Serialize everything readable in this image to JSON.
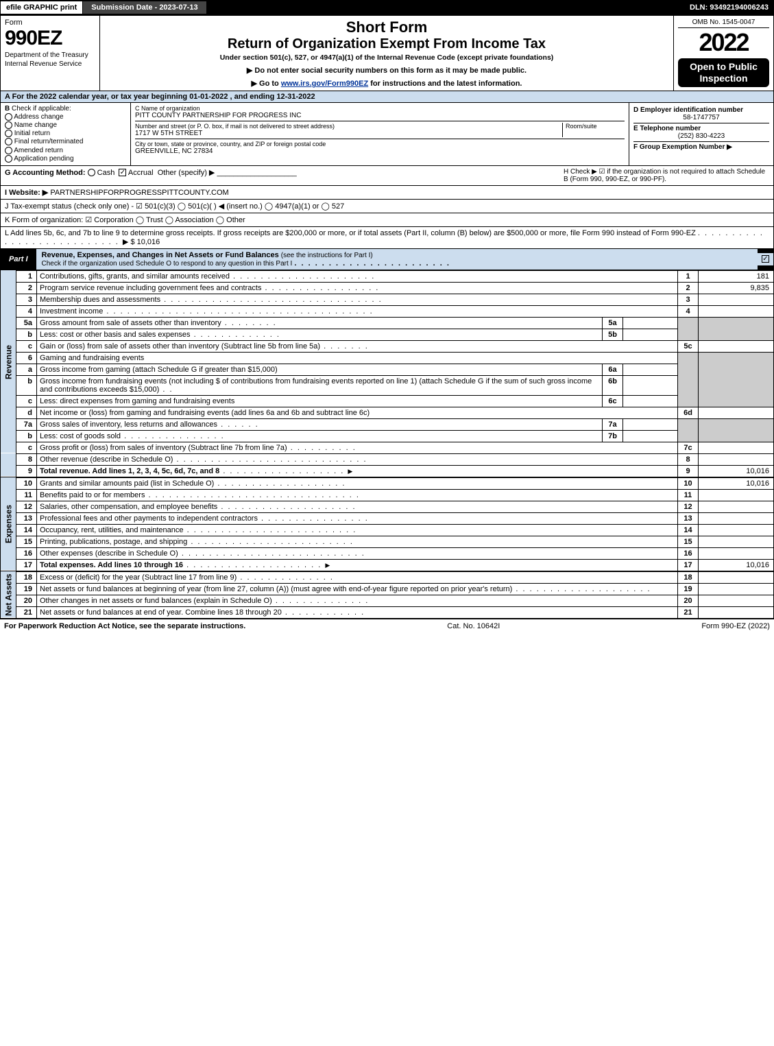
{
  "colors": {
    "header_blue": "#cde",
    "black": "#000000",
    "grey_cell": "#cccccc",
    "link": "#003399"
  },
  "top_bar": {
    "efile": "efile GRAPHIC print",
    "submission": "Submission Date - 2023-07-13",
    "dln": "DLN: 93492194006243"
  },
  "header": {
    "form_word": "Form",
    "form_number": "990EZ",
    "dept": "Department of the Treasury",
    "irs": "Internal Revenue Service",
    "short_form": "Short Form",
    "return_title": "Return of Organization Exempt From Income Tax",
    "under": "Under section 501(c), 527, or 4947(a)(1) of the Internal Revenue Code (except private foundations)",
    "hint1_prefix": "▶ Do not enter social security numbers on this form as it may be made public.",
    "hint2_prefix": "▶ Go to ",
    "hint2_link": "www.irs.gov/Form990EZ",
    "hint2_suffix": " for instructions and the latest information.",
    "omb": "OMB No. 1545-0047",
    "year": "2022",
    "open": "Open to Public Inspection"
  },
  "row_a": "A  For the 2022 calendar year, or tax year beginning 01-01-2022 , and ending 12-31-2022",
  "col_b": {
    "label": "B",
    "check_if": "Check if applicable:",
    "items": [
      "Address change",
      "Name change",
      "Initial return",
      "Final return/terminated",
      "Amended return",
      "Application pending"
    ]
  },
  "col_c": {
    "c_label": "C Name of organization",
    "org_name": "PITT COUNTY PARTNERSHIP FOR PROGRESS INC",
    "street_label": "Number and street (or P. O. box, if mail is not delivered to street address)",
    "room_label": "Room/suite",
    "street": "1717 W 5TH STREET",
    "city_label": "City or town, state or province, country, and ZIP or foreign postal code",
    "city": "GREENVILLE, NC  27834"
  },
  "col_d": {
    "d_label": "D Employer identification number",
    "ein": "58-1747757",
    "e_label": "E Telephone number",
    "phone": "(252) 830-4223",
    "f_label": "F Group Exemption Number ▶"
  },
  "row_g": {
    "g_label": "G Accounting Method:",
    "cash": "Cash",
    "accrual": "Accrual",
    "other": "Other (specify) ▶",
    "h_text": "H  Check ▶ ☑ if the organization is not required to attach Schedule B (Form 990, 990-EZ, or 990-PF)."
  },
  "row_i": {
    "label": "I Website: ▶",
    "value": "PARTNERSHIPFORPROGRESSPITTCOUNTY.COM"
  },
  "row_j": "J Tax-exempt status (check only one) - ☑ 501(c)(3)  ◯ 501(c)(  ) ◀ (insert no.)  ◯ 4947(a)(1) or  ◯ 527",
  "row_k": "K Form of organization:  ☑ Corporation   ◯ Trust   ◯ Association   ◯ Other",
  "row_l": {
    "text": "L Add lines 5b, 6c, and 7b to line 9 to determine gross receipts. If gross receipts are $200,000 or more, or if total assets (Part II, column (B) below) are $500,000 or more, file Form 990 instead of Form 990-EZ",
    "amount": "▶ $ 10,016"
  },
  "part1": {
    "tab": "Part I",
    "title": "Revenue, Expenses, and Changes in Net Assets or Fund Balances",
    "title_paren": "(see the instructions for Part I)",
    "subtitle": "Check if the organization used Schedule O to respond to any question in this Part I"
  },
  "vlabels": {
    "revenue": "Revenue",
    "expenses": "Expenses",
    "netassets": "Net Assets"
  },
  "lines": {
    "l1": {
      "n": "1",
      "t": "Contributions, gifts, grants, and similar amounts received",
      "box": "1",
      "val": "181"
    },
    "l2": {
      "n": "2",
      "t": "Program service revenue including government fees and contracts",
      "box": "2",
      "val": "9,835"
    },
    "l3": {
      "n": "3",
      "t": "Membership dues and assessments",
      "box": "3",
      "val": ""
    },
    "l4": {
      "n": "4",
      "t": "Investment income",
      "box": "4",
      "val": ""
    },
    "l5a": {
      "n": "5a",
      "t": "Gross amount from sale of assets other than inventory",
      "sub": "5a"
    },
    "l5b": {
      "n": "b",
      "t": "Less: cost or other basis and sales expenses",
      "sub": "5b"
    },
    "l5c": {
      "n": "c",
      "t": "Gain or (loss) from sale of assets other than inventory (Subtract line 5b from line 5a)",
      "box": "5c",
      "val": ""
    },
    "l6": {
      "n": "6",
      "t": "Gaming and fundraising events"
    },
    "l6a": {
      "n": "a",
      "t": "Gross income from gaming (attach Schedule G if greater than $15,000)",
      "sub": "6a"
    },
    "l6b": {
      "n": "b",
      "t": "Gross income from fundraising events (not including $                 of contributions from fundraising events reported on line 1) (attach Schedule G if the sum of such gross income and contributions exceeds $15,000)",
      "sub": "6b"
    },
    "l6c": {
      "n": "c",
      "t": "Less: direct expenses from gaming and fundraising events",
      "sub": "6c"
    },
    "l6d": {
      "n": "d",
      "t": "Net income or (loss) from gaming and fundraising events (add lines 6a and 6b and subtract line 6c)",
      "box": "6d",
      "val": ""
    },
    "l7a": {
      "n": "7a",
      "t": "Gross sales of inventory, less returns and allowances",
      "sub": "7a"
    },
    "l7b": {
      "n": "b",
      "t": "Less: cost of goods sold",
      "sub": "7b"
    },
    "l7c": {
      "n": "c",
      "t": "Gross profit or (loss) from sales of inventory (Subtract line 7b from line 7a)",
      "box": "7c",
      "val": ""
    },
    "l8": {
      "n": "8",
      "t": "Other revenue (describe in Schedule O)",
      "box": "8",
      "val": ""
    },
    "l9": {
      "n": "9",
      "t": "Total revenue. Add lines 1, 2, 3, 4, 5c, 6d, 7c, and 8",
      "box": "9",
      "val": "10,016",
      "bold": true
    },
    "l10": {
      "n": "10",
      "t": "Grants and similar amounts paid (list in Schedule O)",
      "box": "10",
      "val": "10,016"
    },
    "l11": {
      "n": "11",
      "t": "Benefits paid to or for members",
      "box": "11",
      "val": ""
    },
    "l12": {
      "n": "12",
      "t": "Salaries, other compensation, and employee benefits",
      "box": "12",
      "val": ""
    },
    "l13": {
      "n": "13",
      "t": "Professional fees and other payments to independent contractors",
      "box": "13",
      "val": ""
    },
    "l14": {
      "n": "14",
      "t": "Occupancy, rent, utilities, and maintenance",
      "box": "14",
      "val": ""
    },
    "l15": {
      "n": "15",
      "t": "Printing, publications, postage, and shipping",
      "box": "15",
      "val": ""
    },
    "l16": {
      "n": "16",
      "t": "Other expenses (describe in Schedule O)",
      "box": "16",
      "val": ""
    },
    "l17": {
      "n": "17",
      "t": "Total expenses. Add lines 10 through 16",
      "box": "17",
      "val": "10,016",
      "bold": true
    },
    "l18": {
      "n": "18",
      "t": "Excess or (deficit) for the year (Subtract line 17 from line 9)",
      "box": "18",
      "val": ""
    },
    "l19": {
      "n": "19",
      "t": "Net assets or fund balances at beginning of year (from line 27, column (A)) (must agree with end-of-year figure reported on prior year's return)",
      "box": "19",
      "val": ""
    },
    "l20": {
      "n": "20",
      "t": "Other changes in net assets or fund balances (explain in Schedule O)",
      "box": "20",
      "val": ""
    },
    "l21": {
      "n": "21",
      "t": "Net assets or fund balances at end of year. Combine lines 18 through 20",
      "box": "21",
      "val": ""
    }
  },
  "footer": {
    "left": "For Paperwork Reduction Act Notice, see the separate instructions.",
    "mid": "Cat. No. 10642I",
    "right": "Form 990-EZ (2022)"
  }
}
